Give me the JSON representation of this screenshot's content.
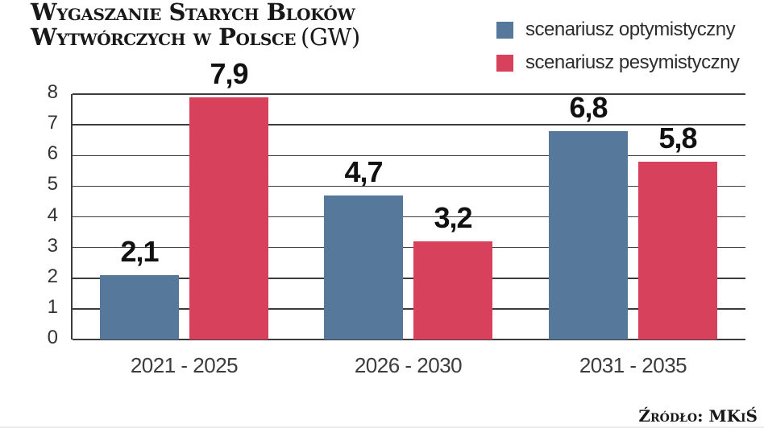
{
  "title": {
    "line1": "Wygaszanie Starych Bloków",
    "line2": "Wytwórczych w Polsce",
    "unit": "(GW)"
  },
  "legend": [
    {
      "id": "optimistic",
      "label": "scenariusz optymistyczny",
      "color": "#56789A"
    },
    {
      "id": "pessimistic",
      "label": "scenariusz pesymistyczny",
      "color": "#D8415C"
    }
  ],
  "source": "Źródło: MKiŚ",
  "chart_data": {
    "type": "bar",
    "title": "Wygaszanie starych bloków wytwórczych w Polsce (GW)",
    "categories": [
      "2021 - 2025",
      "2026 - 2030",
      "2031 - 2035"
    ],
    "series": [
      {
        "name": "scenariusz optymistyczny",
        "color": "#56789A",
        "values": [
          2.1,
          4.7,
          6.8
        ]
      },
      {
        "name": "scenariusz pesymistyczny",
        "color": "#D8415C",
        "values": [
          7.9,
          3.2,
          5.8
        ]
      }
    ],
    "value_labels": [
      [
        "2,1",
        "4,7",
        "6,8"
      ],
      [
        "7,9",
        "3,2",
        "5,8"
      ]
    ],
    "xlabel": "",
    "ylabel": "",
    "ylim": [
      0,
      8
    ],
    "yticks": [
      0,
      1,
      2,
      3,
      4,
      5,
      6,
      7,
      8
    ],
    "grid": true,
    "gridline_color": "#3c3c3c",
    "legend_position": "top-right"
  }
}
